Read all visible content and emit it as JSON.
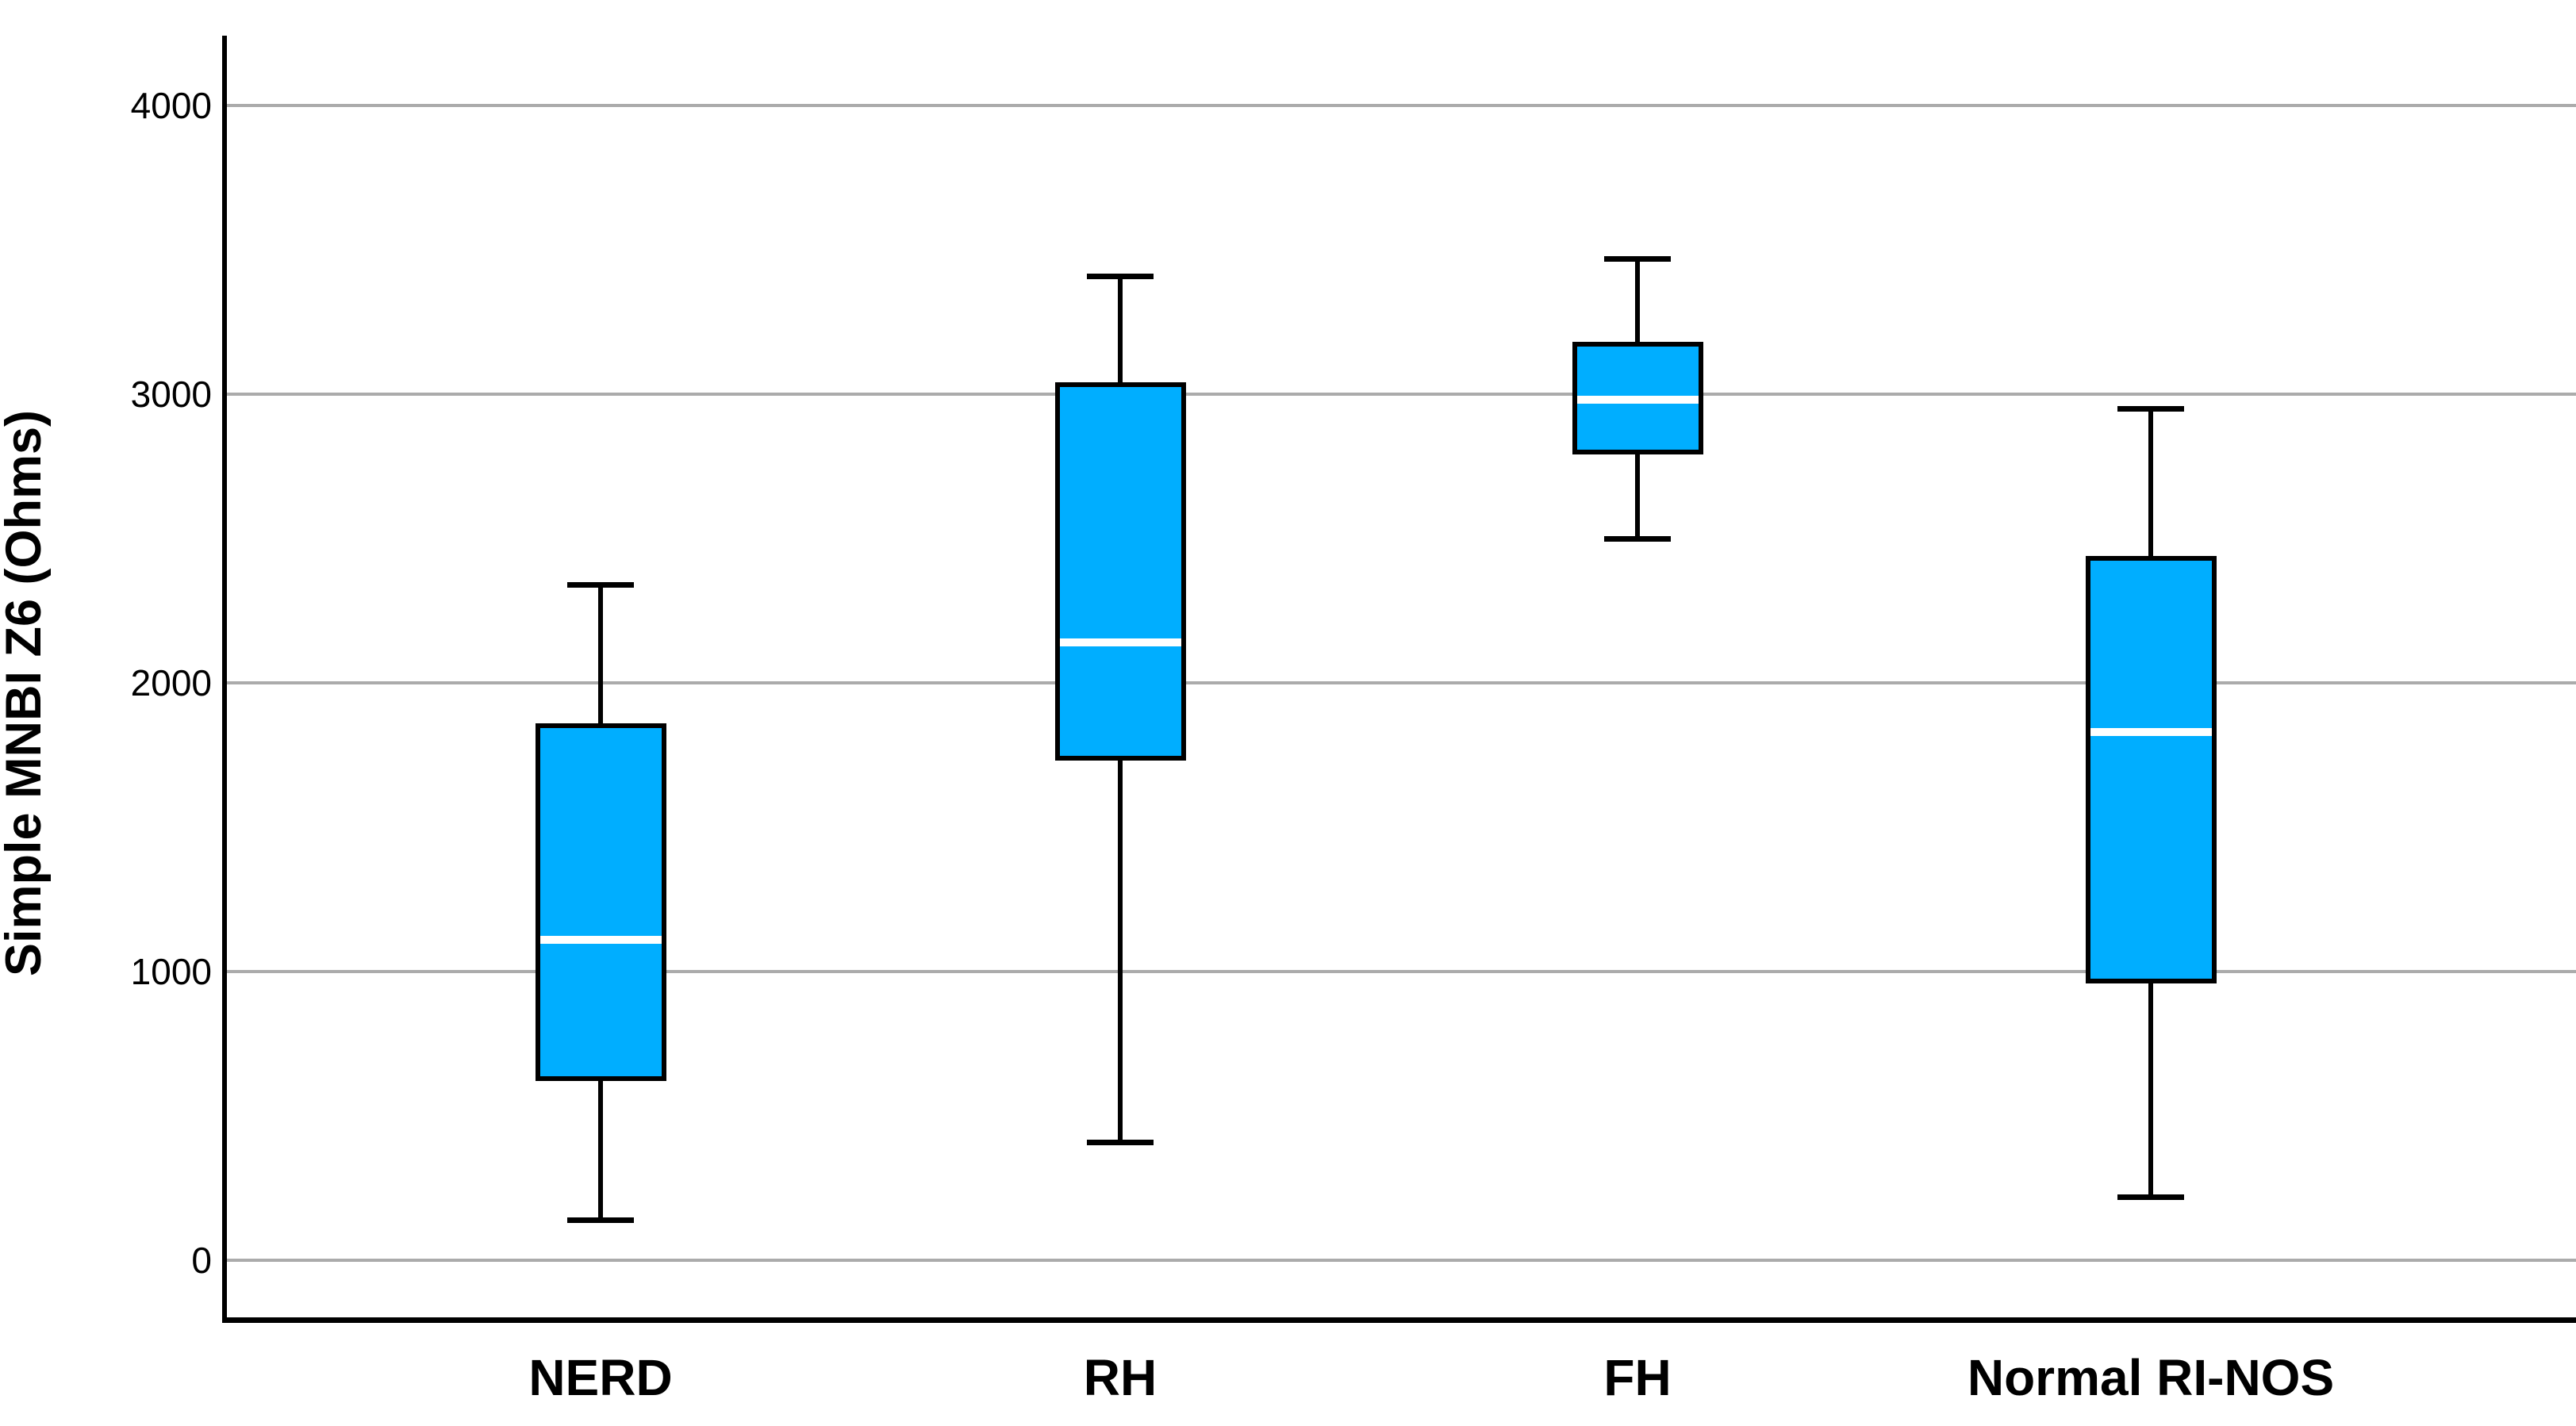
{
  "chart_data": {
    "type": "boxplot",
    "title": "",
    "xlabel": "",
    "ylabel": "Simple MNBI Z6 (Ohms)",
    "ylim": [
      -220,
      4240
    ],
    "yticks": [
      0,
      1000,
      2000,
      3000,
      4000
    ],
    "grid": "horizontal-gridlines-at-each-ytick",
    "legend": "none",
    "categories": [
      "NERD",
      "RH",
      "FH",
      "Normal RI-NOS"
    ],
    "series": [
      {
        "name": "NERD",
        "min": 140,
        "q1": 620,
        "median": 1110,
        "q3": 1860,
        "max": 2340
      },
      {
        "name": "RH",
        "min": 410,
        "q1": 1730,
        "median": 2140,
        "q3": 3040,
        "max": 3410
      },
      {
        "name": "FH",
        "min": 2500,
        "q1": 2790,
        "median": 2980,
        "q3": 3180,
        "max": 3470
      },
      {
        "name": "Normal RI-NOS",
        "min": 220,
        "q1": 960,
        "median": 1830,
        "q3": 2440,
        "max": 2950
      }
    ],
    "colors": {
      "box_fill": "#00AEFF",
      "box_border": "#000000",
      "median_line": "#FFFFFF",
      "gridline": "#ABABAB",
      "axis": "#000000",
      "background": "#FFFFFF"
    }
  }
}
